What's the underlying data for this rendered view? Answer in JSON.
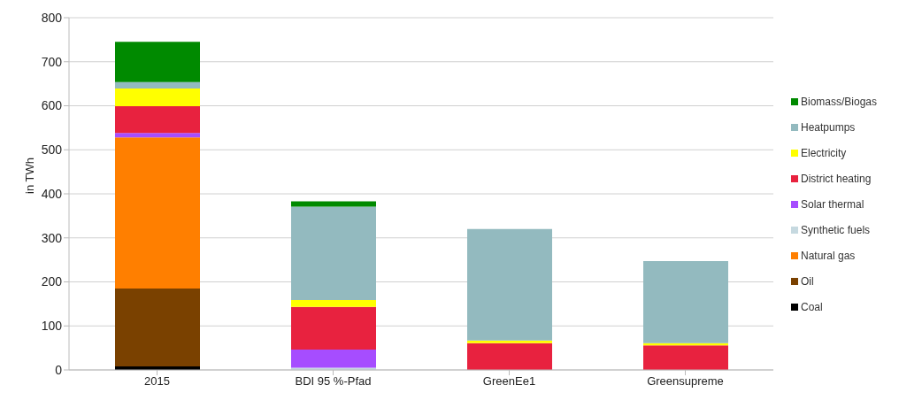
{
  "chart_data": {
    "type": "bar",
    "stacked": true,
    "ylabel": "in TWh",
    "categories": [
      "2015",
      "BDI 95 %-Pfad",
      "GreenEe1",
      "Greensupreme"
    ],
    "ylim": [
      0,
      800
    ],
    "yticks": [
      0,
      100,
      200,
      300,
      400,
      500,
      600,
      700,
      800
    ],
    "grid": "y",
    "legend": "right",
    "series": [
      {
        "name": "Coal",
        "color": "#000000",
        "values": [
          8,
          0,
          0,
          0
        ]
      },
      {
        "name": "Oil",
        "color": "#7a4100",
        "values": [
          177,
          0,
          0,
          0
        ]
      },
      {
        "name": "Natural gas",
        "color": "#ff7f00",
        "values": [
          343,
          0,
          0,
          0
        ]
      },
      {
        "name": "Synthetic fuels",
        "color": "#c6d9e0",
        "values": [
          0,
          5,
          0,
          0
        ]
      },
      {
        "name": "Solar thermal",
        "color": "#a64dff",
        "values": [
          10,
          41,
          0,
          0
        ]
      },
      {
        "name": "District heating",
        "color": "#e8223f",
        "values": [
          61,
          97,
          61,
          56
        ]
      },
      {
        "name": "Electricity",
        "color": "#ffff00",
        "values": [
          40,
          16,
          6,
          5
        ]
      },
      {
        "name": "Heatpumps",
        "color": "#93babf",
        "values": [
          15,
          212,
          253,
          186
        ]
      },
      {
        "name": "Biomass/Biogas",
        "color": "#008a00",
        "values": [
          91,
          12,
          0,
          0
        ]
      }
    ]
  }
}
